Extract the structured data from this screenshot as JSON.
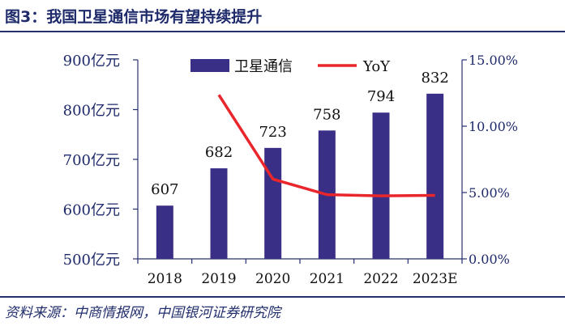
{
  "figure": {
    "title": "图3：我国卫星通信市场有望持续提升",
    "source": "资料来源：中商情报网，中国银河证券研究院"
  },
  "colors": {
    "bar": "#3a2f87",
    "line": "#e8262b",
    "text": "#1f2a6b",
    "axis": "#27306f"
  },
  "chart_data": {
    "type": "bar",
    "categories": [
      "2018",
      "2019",
      "2020",
      "2021",
      "2022",
      "2023E"
    ],
    "series": [
      {
        "name": "卫星通信",
        "type": "bar",
        "axis": "left",
        "values": [
          607,
          682,
          723,
          758,
          794,
          832
        ],
        "labels": [
          "607",
          "682",
          "723",
          "758",
          "794",
          "832"
        ]
      },
      {
        "name": "YoY",
        "type": "line",
        "axis": "right",
        "values": [
          null,
          12.36,
          6.01,
          4.84,
          4.75,
          4.79
        ]
      }
    ],
    "y_left": {
      "range": [
        500,
        900
      ],
      "ticks": [
        "500亿元",
        "600亿元",
        "700亿元",
        "800亿元",
        "900亿元"
      ]
    },
    "y_right": {
      "range": [
        0,
        15
      ],
      "ticks": [
        "0.00%",
        "5.00%",
        "10.00%",
        "15.00%"
      ]
    },
    "legend_placement": "top-center",
    "grid": false
  }
}
